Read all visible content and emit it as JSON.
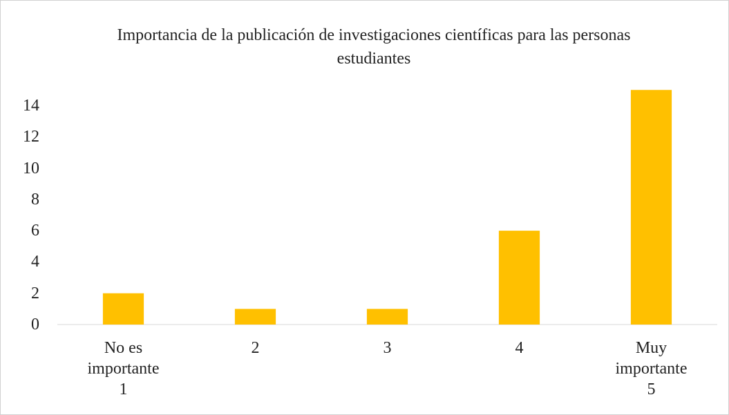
{
  "chart_data": {
    "type": "bar",
    "title": "Importancia de la publicación de investigaciones científicas para las personas estudiantes",
    "categories": [
      "No es importante 1",
      "2",
      "3",
      "4",
      "Muy importante 5"
    ],
    "values": [
      2,
      1,
      1,
      6,
      15
    ],
    "color": "#ffc000",
    "ylim": [
      0,
      16
    ],
    "yticks": [
      0,
      2,
      4,
      6,
      8,
      10,
      12,
      14
    ],
    "grid": false
  }
}
